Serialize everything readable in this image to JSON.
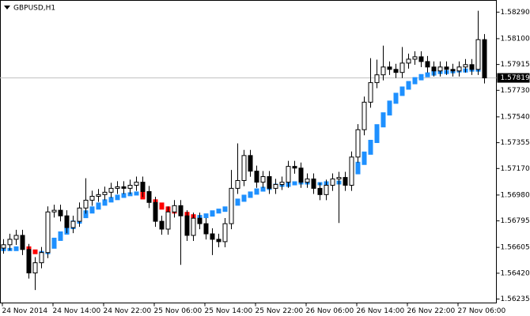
{
  "chart_data": {
    "type": "candlestick",
    "title": "GBPUSD,H1",
    "categories": [
      "24 Nov 2014",
      null,
      null,
      null,
      null,
      null,
      null,
      null,
      "24 Nov 14:00",
      null,
      null,
      null,
      null,
      null,
      null,
      null,
      "24 Nov 22:00",
      null,
      null,
      null,
      null,
      null,
      null,
      null,
      "25 Nov 06:00",
      null,
      null,
      null,
      null,
      null,
      null,
      null,
      "25 Nov 14:00",
      null,
      null,
      null,
      null,
      null,
      null,
      null,
      "25 Nov 22:00",
      null,
      null,
      null,
      null,
      null,
      null,
      null,
      "26 Nov 06:00",
      null,
      null,
      null,
      null,
      null,
      null,
      null,
      "26 Nov 14:00",
      null,
      null,
      null,
      null,
      null,
      null,
      null,
      "26 Nov 22:00",
      null,
      null,
      null,
      null,
      null,
      null,
      null,
      "27 Nov 06:00",
      null,
      null,
      null,
      null
    ],
    "open": [
      1.566,
      1.56624,
      1.56663,
      1.56691,
      1.5659,
      1.56422,
      1.56495,
      1.56568,
      1.56859,
      1.56871,
      1.56831,
      1.56747,
      1.56792,
      1.56887,
      1.56943,
      1.56971,
      1.56983,
      1.57,
      1.57028,
      1.57039,
      1.57028,
      1.5705,
      1.57072,
      1.57005,
      1.56927,
      1.56792,
      1.56736,
      1.56859,
      1.56904,
      1.56831,
      1.56691,
      1.56814,
      1.56775,
      1.56702,
      1.56663,
      1.56646,
      1.56775,
      1.57028,
      1.57084,
      1.57263,
      1.57151,
      1.57072,
      1.57112,
      1.57028,
      1.57056,
      1.57072,
      1.57185,
      1.57173,
      1.57072,
      1.57095,
      1.57028,
      1.56983,
      1.5705,
      1.57095,
      1.57106,
      1.5705,
      1.57252,
      1.57448,
      1.57645,
      1.57785,
      1.57841,
      1.57897,
      1.5788,
      1.57858,
      1.57925,
      1.57953,
      1.5797,
      1.57936,
      1.57897,
      1.57869,
      1.57897,
      1.5788,
      1.57869,
      1.57897,
      1.57914,
      1.5788,
      1.58093
    ],
    "high": [
      1.56664,
      1.56703,
      1.56731,
      1.56731,
      1.5663,
      1.56535,
      1.56608,
      1.56899,
      1.56911,
      1.56911,
      1.56871,
      1.56832,
      1.56927,
      1.571,
      1.57011,
      1.57023,
      1.5704,
      1.57068,
      1.57079,
      1.57079,
      1.5709,
      1.57112,
      1.57112,
      1.57045,
      1.56967,
      1.56832,
      1.56899,
      1.56944,
      1.56944,
      1.56871,
      1.56854,
      1.56854,
      1.56815,
      1.56742,
      1.56703,
      1.56815,
      1.5716,
      1.5735,
      1.57303,
      1.57303,
      1.57191,
      1.57152,
      1.57152,
      1.57096,
      1.57112,
      1.57225,
      1.57225,
      1.57213,
      1.57135,
      1.57135,
      1.57068,
      1.5709,
      1.57135,
      1.57146,
      1.57146,
      1.57292,
      1.57488,
      1.57685,
      1.5796,
      1.5795,
      1.5805,
      1.57937,
      1.5792,
      1.5804,
      1.57993,
      1.5801,
      1.5801,
      1.57976,
      1.57937,
      1.57937,
      1.57937,
      1.5792,
      1.57937,
      1.57954,
      1.57954,
      1.583,
      1.58133
    ],
    "low": [
      1.5656,
      1.56584,
      1.56623,
      1.5655,
      1.56382,
      1.563,
      1.56455,
      1.56528,
      1.56819,
      1.56791,
      1.56707,
      1.56707,
      1.56752,
      1.56847,
      1.56903,
      1.56931,
      1.56943,
      1.5696,
      1.56988,
      1.56988,
      1.56988,
      1.5701,
      1.56965,
      1.56887,
      1.56752,
      1.56696,
      1.56696,
      1.56819,
      1.5648,
      1.56651,
      1.56651,
      1.56735,
      1.56662,
      1.5655,
      1.56606,
      1.56606,
      1.56735,
      1.56988,
      1.57044,
      1.57111,
      1.57032,
      1.57032,
      1.56988,
      1.56988,
      1.57016,
      1.57032,
      1.57133,
      1.57032,
      1.57032,
      1.56988,
      1.56943,
      1.56943,
      1.5701,
      1.5678,
      1.5701,
      1.5701,
      1.57212,
      1.57408,
      1.57605,
      1.57745,
      1.57801,
      1.5784,
      1.57818,
      1.57818,
      1.57885,
      1.57913,
      1.57896,
      1.57857,
      1.57829,
      1.57829,
      1.5784,
      1.57829,
      1.57829,
      1.57857,
      1.5784,
      1.5784,
      1.57779
    ],
    "close": [
      1.56624,
      1.56663,
      1.56691,
      1.5659,
      1.56422,
      1.56495,
      1.56568,
      1.56859,
      1.56871,
      1.56831,
      1.56747,
      1.56792,
      1.56887,
      1.56943,
      1.56971,
      1.56983,
      1.57,
      1.57028,
      1.57039,
      1.57028,
      1.5705,
      1.57072,
      1.57005,
      1.56927,
      1.56792,
      1.56736,
      1.56859,
      1.56904,
      1.56831,
      1.56691,
      1.56814,
      1.56775,
      1.56702,
      1.56663,
      1.56646,
      1.56775,
      1.57028,
      1.57084,
      1.57263,
      1.57151,
      1.57072,
      1.57112,
      1.57028,
      1.57056,
      1.57072,
      1.57185,
      1.57173,
      1.57072,
      1.57095,
      1.57028,
      1.56983,
      1.5705,
      1.57095,
      1.57106,
      1.5705,
      1.57252,
      1.57448,
      1.57645,
      1.57785,
      1.57841,
      1.57897,
      1.5788,
      1.57858,
      1.57925,
      1.57953,
      1.5797,
      1.57936,
      1.57897,
      1.57869,
      1.57897,
      1.5788,
      1.57869,
      1.57897,
      1.57914,
      1.5788,
      1.58093,
      1.57819
    ],
    "indicator": {
      "up_color": "#1e90ff",
      "down_color": "#ff0000",
      "values": [
        1.5659,
        1.5659,
        1.56601,
        1.56601,
        1.56579,
        1.56568,
        1.56568,
        1.56607,
        1.56663,
        1.56708,
        1.56747,
        1.56786,
        1.56826,
        1.56859,
        1.56887,
        1.56915,
        1.56938,
        1.56955,
        1.56971,
        1.56983,
        1.56988,
        1.56994,
        1.5696,
        1.56938,
        1.56915,
        1.56887,
        1.56871,
        1.56859,
        1.56848,
        1.56831,
        1.5682,
        1.56826,
        1.56837,
        1.56859,
        1.56871,
        1.56887,
        1.56915,
        1.56943,
        1.56971,
        1.56994,
        1.57016,
        1.57028,
        1.57039,
        1.5705,
        1.5705,
        1.57061,
        1.57067,
        1.57067,
        1.57067,
        1.57061,
        1.57061,
        1.57067,
        1.57067,
        1.57072,
        1.57095,
        1.5714,
        1.57207,
        1.5728,
        1.57364,
        1.57476,
        1.57561,
        1.57645,
        1.57701,
        1.57746,
        1.57785,
        1.57813,
        1.57835,
        1.57847,
        1.57858,
        1.57858,
        1.57863,
        1.57869,
        1.57869,
        1.57875,
        1.57875,
        1.5788,
        1.5788
      ]
    },
    "current_price": 1.57819,
    "ylim": [
      1.56207,
      1.58374
    ],
    "yticks": [
      {
        "value": 1.5829,
        "label": "1.58290"
      },
      {
        "value": 1.581,
        "label": "1.58100"
      },
      1.57915,
      {
        "value": 1.5773,
        "label": "1.57730"
      },
      {
        "value": 1.5754,
        "label": "1.57540"
      },
      1.57355,
      {
        "value": 1.5717,
        "label": "1.57170"
      },
      {
        "value": 1.5698,
        "label": "1.56980"
      },
      1.56795,
      1.56605,
      {
        "value": 1.5642,
        "label": "1.56420"
      },
      1.56235
    ],
    "colors": {
      "up_body": "#ffffff",
      "down_body": "#000000",
      "outline": "#000000"
    }
  }
}
